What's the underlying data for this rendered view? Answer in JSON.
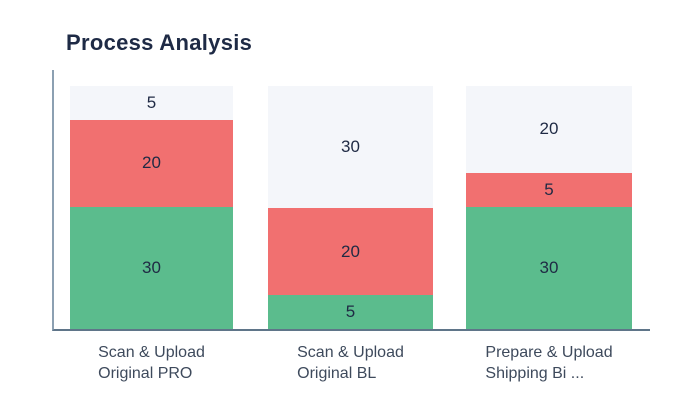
{
  "title": "Process Analysis",
  "colors": {
    "green": "#5BBC8D",
    "red": "#F17070",
    "light": "#F4F6FA",
    "value_label": "#1F2A44",
    "title": "#1E2A45",
    "category": "#3E4A5C",
    "axis": "#5F7589"
  },
  "chart_data": {
    "type": "bar",
    "stacked": true,
    "title": "Process Analysis",
    "xlabel": "",
    "ylabel": "",
    "legend": false,
    "grid": false,
    "ylim": [
      0,
      55
    ],
    "categories": [
      "Scan & Upload Original PRO",
      "Scan & Upload Original BL",
      "Prepare & Upload Shipping Bi ..."
    ],
    "series": [
      {
        "name": "green-bottom",
        "color": "#5BBC8D",
        "values": [
          30,
          5,
          30
        ]
      },
      {
        "name": "red-middle",
        "color": "#F17070",
        "values": [
          20,
          20,
          5
        ]
      },
      {
        "name": "light-top",
        "color": "#F4F6FA",
        "values": [
          5,
          30,
          20
        ]
      }
    ]
  },
  "category_labels": [
    {
      "line1": "Scan & Upload",
      "line2": "Original PRO"
    },
    {
      "line1": "Scan & Upload",
      "line2": "Original BL"
    },
    {
      "line1": "Prepare & Upload",
      "line2": "Shipping Bi ..."
    }
  ]
}
